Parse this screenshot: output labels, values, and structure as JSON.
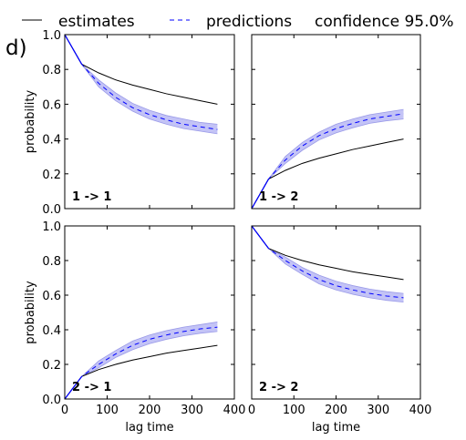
{
  "figure": {
    "panel_letter": "d)"
  },
  "legend": {
    "entries": [
      {
        "label": "estimates",
        "style": "solid"
      },
      {
        "label": "predictions",
        "style": "dashed"
      },
      {
        "label": "confidence 95.0%",
        "style": "band"
      }
    ]
  },
  "colors": {
    "estimate": "#000000",
    "prediction": "#0000ff",
    "band": "#b8b8f5"
  },
  "axes": {
    "xlabel": "lag time",
    "ylabel": "probability",
    "xlim": [
      0,
      400
    ],
    "ylim": [
      0,
      1
    ],
    "xticks": [
      0,
      100,
      200,
      300,
      400
    ],
    "yticks": [
      0.0,
      0.2,
      0.4,
      0.6,
      0.8,
      1.0
    ]
  },
  "chart_data": [
    {
      "type": "line",
      "title": "1 -> 1",
      "x": [
        0,
        40,
        80,
        120,
        160,
        200,
        240,
        280,
        320,
        360
      ],
      "series": [
        {
          "name": "estimates",
          "values": [
            1.0,
            0.83,
            0.78,
            0.74,
            0.71,
            0.685,
            0.66,
            0.64,
            0.62,
            0.6
          ]
        },
        {
          "name": "predictions",
          "values": [
            1.0,
            0.83,
            0.72,
            0.64,
            0.58,
            0.54,
            0.51,
            0.485,
            0.47,
            0.455
          ],
          "lower": [
            1.0,
            0.83,
            0.7,
            0.62,
            0.56,
            0.515,
            0.485,
            0.46,
            0.445,
            0.43
          ],
          "upper": [
            1.0,
            0.83,
            0.74,
            0.665,
            0.605,
            0.565,
            0.535,
            0.515,
            0.495,
            0.485
          ]
        }
      ]
    },
    {
      "type": "line",
      "title": "1 -> 2",
      "x": [
        0,
        40,
        80,
        120,
        160,
        200,
        240,
        280,
        320,
        360
      ],
      "series": [
        {
          "name": "estimates",
          "values": [
            0.0,
            0.17,
            0.22,
            0.26,
            0.29,
            0.315,
            0.34,
            0.36,
            0.38,
            0.4
          ]
        },
        {
          "name": "predictions",
          "values": [
            0.0,
            0.17,
            0.28,
            0.36,
            0.42,
            0.46,
            0.49,
            0.515,
            0.53,
            0.545
          ],
          "lower": [
            0.0,
            0.17,
            0.26,
            0.335,
            0.395,
            0.435,
            0.465,
            0.49,
            0.505,
            0.515
          ],
          "upper": [
            0.0,
            0.17,
            0.3,
            0.38,
            0.44,
            0.485,
            0.515,
            0.54,
            0.555,
            0.57
          ]
        }
      ]
    },
    {
      "type": "line",
      "title": "2 -> 1",
      "x": [
        0,
        40,
        80,
        120,
        160,
        200,
        240,
        280,
        320,
        360
      ],
      "series": [
        {
          "name": "estimates",
          "values": [
            0.0,
            0.13,
            0.17,
            0.2,
            0.225,
            0.245,
            0.265,
            0.28,
            0.295,
            0.31
          ]
        },
        {
          "name": "predictions",
          "values": [
            0.0,
            0.13,
            0.2,
            0.26,
            0.31,
            0.345,
            0.37,
            0.39,
            0.405,
            0.415
          ],
          "lower": [
            0.0,
            0.13,
            0.18,
            0.24,
            0.285,
            0.32,
            0.345,
            0.365,
            0.38,
            0.39
          ],
          "upper": [
            0.0,
            0.13,
            0.22,
            0.28,
            0.335,
            0.37,
            0.395,
            0.415,
            0.43,
            0.445
          ]
        }
      ]
    },
    {
      "type": "line",
      "title": "2 -> 2",
      "x": [
        0,
        40,
        80,
        120,
        160,
        200,
        240,
        280,
        320,
        360
      ],
      "series": [
        {
          "name": "estimates",
          "values": [
            1.0,
            0.87,
            0.83,
            0.8,
            0.775,
            0.755,
            0.735,
            0.72,
            0.705,
            0.69
          ]
        },
        {
          "name": "predictions",
          "values": [
            1.0,
            0.87,
            0.8,
            0.74,
            0.69,
            0.655,
            0.63,
            0.61,
            0.595,
            0.585
          ],
          "lower": [
            1.0,
            0.87,
            0.78,
            0.72,
            0.665,
            0.63,
            0.605,
            0.585,
            0.57,
            0.56
          ],
          "upper": [
            1.0,
            0.87,
            0.82,
            0.76,
            0.715,
            0.68,
            0.655,
            0.635,
            0.62,
            0.61
          ]
        }
      ]
    }
  ]
}
